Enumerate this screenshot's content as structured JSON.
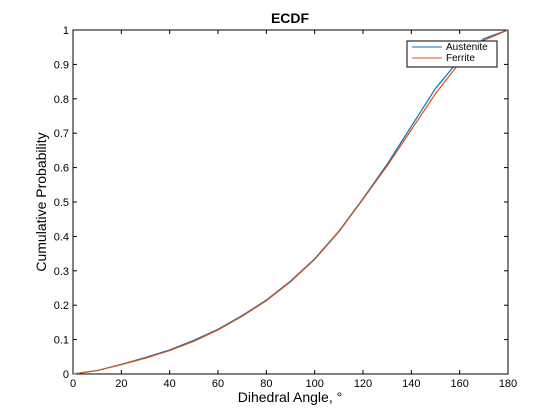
{
  "chart_data": {
    "type": "line",
    "title": "ECDF",
    "xlabel": "Dihedral Angle, °",
    "ylabel": "Cumulative Probability",
    "xlim": [
      0,
      180
    ],
    "ylim": [
      0,
      1
    ],
    "x_ticks": [
      "0",
      "20",
      "40",
      "60",
      "80",
      "100",
      "120",
      "140",
      "160",
      "180"
    ],
    "y_ticks": [
      "0",
      "0.1",
      "0.2",
      "0.3",
      "0.4",
      "0.5",
      "0.6",
      "0.7",
      "0.8",
      "0.9",
      "1"
    ],
    "grid": false,
    "legend_position": "top-right",
    "series": [
      {
        "name": "Austenite",
        "color": "#0072bd",
        "x": [
          0,
          10,
          20,
          30,
          40,
          50,
          60,
          70,
          80,
          90,
          100,
          110,
          120,
          130,
          140,
          150,
          160,
          170,
          180
        ],
        "y": [
          0,
          0.01,
          0.028,
          0.048,
          0.07,
          0.098,
          0.13,
          0.17,
          0.215,
          0.27,
          0.335,
          0.415,
          0.51,
          0.61,
          0.72,
          0.83,
          0.915,
          0.975,
          1.0
        ]
      },
      {
        "name": "Ferrite",
        "color": "#d95319",
        "x": [
          0,
          10,
          20,
          30,
          40,
          50,
          60,
          70,
          80,
          90,
          100,
          110,
          120,
          130,
          140,
          150,
          160,
          170,
          180
        ],
        "y": [
          0,
          0.01,
          0.027,
          0.046,
          0.068,
          0.095,
          0.128,
          0.168,
          0.213,
          0.268,
          0.333,
          0.413,
          0.508,
          0.605,
          0.71,
          0.815,
          0.905,
          0.97,
          1.0
        ]
      }
    ]
  }
}
